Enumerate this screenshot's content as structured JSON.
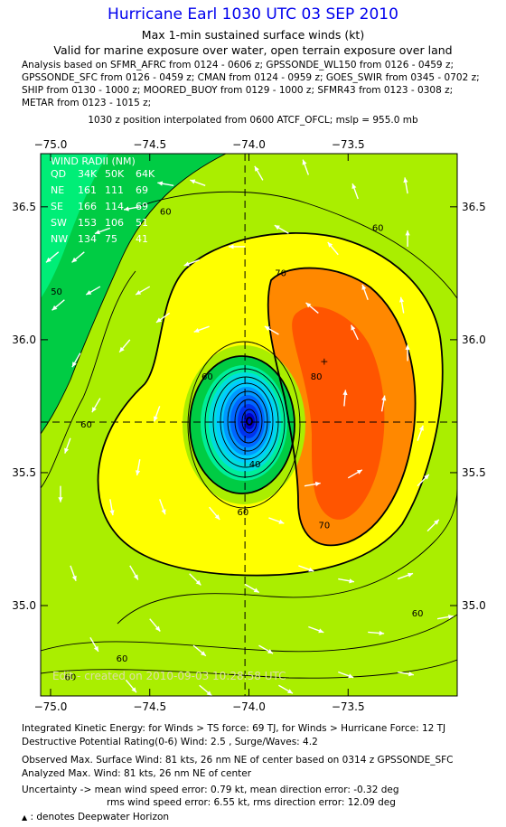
{
  "header": {
    "title": "Hurricane Earl 1030 UTC 03 SEP 2010",
    "subtitle1": "Max 1-min sustained surface winds (kt)",
    "subtitle2": "Valid for marine exposure over water, open terrain exposure over land",
    "sources": [
      "Analysis based on SFMR_AFRC from 0124 - 0606 z; GPSSONDE_WL150 from 0126 - 0459 z;",
      "GPSSONDE_SFC from 0126 - 0459 z; CMAN from 0124 - 0959 z; GOES_SWIR from 0345 - 0702 z;",
      "SHIP from 0130 - 1000 z; MOORED_BUOY from 0129 - 1000 z; SFMR43 from 0123 - 0308 z;",
      "METAR from 0123 - 1015 z;"
    ],
    "position_note": "1030 z position interpolated from 0600 ATCF_OFCL; mslp = 955.0 mb"
  },
  "chart_data": {
    "type": "contour-map",
    "x_ticks": [
      "−75.0",
      "−74.5",
      "−74.0",
      "−73.5"
    ],
    "y_ticks": [
      "36.5",
      "36.0",
      "35.5",
      "35.0"
    ],
    "x_tick_values": [
      -75.0,
      -74.5,
      -74.0,
      -73.5
    ],
    "y_tick_values": [
      36.5,
      36.0,
      35.5,
      35.0
    ],
    "xlim": [
      -75.05,
      -72.95
    ],
    "ylim": [
      34.66,
      36.7
    ],
    "center": [
      -74.02,
      35.69
    ],
    "max_wind_marker": [
      -73.62,
      35.92
    ],
    "contour_labels": [
      {
        "text": "60",
        "lon": -74.42,
        "lat": 36.47
      },
      {
        "text": "60",
        "lon": -73.35,
        "lat": 36.41
      },
      {
        "text": "50",
        "lon": -74.97,
        "lat": 36.17
      },
      {
        "text": "70",
        "lon": -73.84,
        "lat": 36.24
      },
      {
        "text": "80",
        "lon": -73.66,
        "lat": 35.85
      },
      {
        "text": "60",
        "lon": -74.21,
        "lat": 35.85
      },
      {
        "text": "60",
        "lon": -74.82,
        "lat": 35.67
      },
      {
        "text": "40",
        "lon": -73.97,
        "lat": 35.52
      },
      {
        "text": "60",
        "lon": -74.03,
        "lat": 35.34
      },
      {
        "text": "70",
        "lon": -73.62,
        "lat": 35.29
      },
      {
        "text": "60",
        "lon": -73.15,
        "lat": 34.96
      },
      {
        "text": "60",
        "lon": -74.64,
        "lat": 34.79
      },
      {
        "text": "60",
        "lon": -74.9,
        "lat": 34.72
      }
    ],
    "wind_radii": {
      "title": "WIND RADII (NM)",
      "header": [
        "QD",
        "34K",
        "50K",
        "64K"
      ],
      "rows": [
        [
          "NE",
          "161",
          "111",
          "69"
        ],
        [
          "SE",
          "166",
          "114",
          "69"
        ],
        [
          "SW",
          "153",
          "106",
          "51"
        ],
        [
          "NW",
          "134",
          "75",
          "41"
        ]
      ]
    },
    "credit": "Edit - created on 2010-09-03 10:28:58 UTC",
    "wind_arrows": [
      [
        -74.96,
        36.33,
        220
      ],
      [
        -74.83,
        36.33,
        220
      ],
      [
        -74.7,
        36.42,
        200
      ],
      [
        -74.55,
        36.5,
        190
      ],
      [
        -74.38,
        36.58,
        170
      ],
      [
        -74.22,
        36.58,
        160
      ],
      [
        -73.93,
        36.6,
        120
      ],
      [
        -73.7,
        36.62,
        110
      ],
      [
        -73.45,
        36.53,
        110
      ],
      [
        -73.2,
        36.55,
        100
      ],
      [
        -73.2,
        36.35,
        90
      ],
      [
        -74.93,
        36.15,
        220
      ],
      [
        -74.75,
        36.2,
        210
      ],
      [
        -74.5,
        36.2,
        210
      ],
      [
        -74.25,
        36.3,
        200
      ],
      [
        -74.02,
        36.35,
        180
      ],
      [
        -73.8,
        36.4,
        150
      ],
      [
        -73.55,
        36.32,
        130
      ],
      [
        -73.4,
        36.15,
        110
      ],
      [
        -73.22,
        36.1,
        100
      ],
      [
        -74.85,
        35.95,
        240
      ],
      [
        -74.6,
        36.0,
        230
      ],
      [
        -74.4,
        36.1,
        215
      ],
      [
        -74.2,
        36.05,
        200
      ],
      [
        -73.85,
        36.02,
        150
      ],
      [
        -73.65,
        36.1,
        140
      ],
      [
        -73.45,
        36.0,
        115
      ],
      [
        -73.2,
        35.92,
        90
      ],
      [
        -74.9,
        35.63,
        250
      ],
      [
        -74.75,
        35.78,
        240
      ],
      [
        -74.55,
        35.55,
        260
      ],
      [
        -74.45,
        35.75,
        250
      ],
      [
        -73.52,
        35.75,
        85
      ],
      [
        -73.33,
        35.73,
        80
      ],
      [
        -73.15,
        35.62,
        70
      ],
      [
        -74.95,
        35.45,
        270
      ],
      [
        -74.7,
        35.4,
        280
      ],
      [
        -74.45,
        35.4,
        290
      ],
      [
        -74.2,
        35.37,
        310
      ],
      [
        -73.9,
        35.33,
        340
      ],
      [
        -73.72,
        35.45,
        10
      ],
      [
        -73.5,
        35.48,
        30
      ],
      [
        -73.15,
        35.45,
        45
      ],
      [
        -73.1,
        35.28,
        45
      ],
      [
        -74.9,
        35.15,
        290
      ],
      [
        -74.6,
        35.15,
        300
      ],
      [
        -74.3,
        35.12,
        315
      ],
      [
        -74.02,
        35.08,
        330
      ],
      [
        -73.75,
        35.15,
        340
      ],
      [
        -73.55,
        35.1,
        350
      ],
      [
        -73.25,
        35.1,
        20
      ],
      [
        -74.8,
        34.88,
        300
      ],
      [
        -74.5,
        34.95,
        310
      ],
      [
        -74.28,
        34.85,
        320
      ],
      [
        -73.95,
        34.85,
        330
      ],
      [
        -73.7,
        34.92,
        340
      ],
      [
        -73.4,
        34.9,
        355
      ],
      [
        -73.05,
        34.95,
        10
      ],
      [
        -74.62,
        34.72,
        310
      ],
      [
        -74.25,
        34.7,
        320
      ],
      [
        -73.85,
        34.7,
        330
      ],
      [
        -73.55,
        34.75,
        340
      ],
      [
        -73.25,
        34.75,
        350
      ]
    ]
  },
  "footer": {
    "ike": "Integrated Kinetic Energy:  for Winds > TS force: 69 TJ,  for Winds > Hurricane Force: 12 TJ",
    "dpr": "Destructive Potential Rating(0-6)   Wind: 2.5 , Surge/Waves: 4.2",
    "obs_max": "Observed Max. Surface Wind: 81 kts, 26 nm NE of center based on 0314 z GPSSONDE_SFC",
    "analyzed_max": "Analyzed Max. Wind: 81 kts, 26 nm NE of center",
    "uncertainty1": "Uncertainty -> mean wind speed error: 0.79 kt,   mean direction error:  -0.32 deg",
    "uncertainty2": "rms wind speed error: 6.55 kt,   rms direction error: 12.09 deg",
    "legend_marker": "▲",
    "legend": ": denotes Deepwater Horizon"
  },
  "colors": {
    "title": "#0000ee",
    "green_dark": "#00cc44",
    "green_light": "#aaee00",
    "yellow": "#ffff00",
    "orange": "#ff8800",
    "orange_deep": "#ff5500"
  }
}
